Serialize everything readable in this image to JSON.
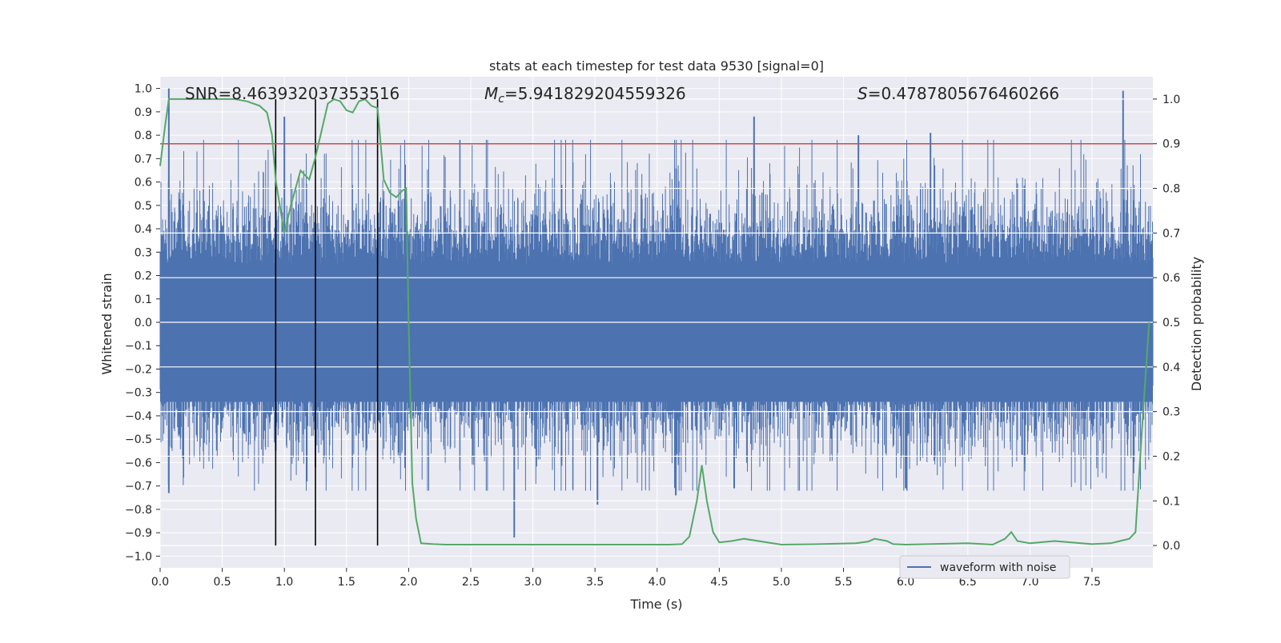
{
  "chart_data": {
    "type": "line",
    "title": "stats at each timestep for test data 9530 [signal=0]",
    "xlabel": "Time (s)",
    "ylabel": "Whitened strain",
    "y2label": "Detection probability",
    "xlim": [
      0.0,
      7.99
    ],
    "ylim": [
      -1.05,
      1.05
    ],
    "y2lim": [
      -0.05,
      1.05
    ],
    "xticks": [
      0.0,
      0.5,
      1.0,
      1.5,
      2.0,
      2.5,
      3.0,
      3.5,
      4.0,
      4.5,
      5.0,
      5.5,
      6.0,
      6.5,
      7.0,
      7.5
    ],
    "xtick_labels": [
      "0.0",
      "0.5",
      "1.0",
      "1.5",
      "2.0",
      "2.5",
      "3.0",
      "3.5",
      "4.0",
      "4.5",
      "5.0",
      "5.5",
      "6.0",
      "6.5",
      "7.0",
      "7.5"
    ],
    "yticks": [
      1.0,
      0.9,
      0.8,
      0.7,
      0.6,
      0.5,
      0.4,
      0.3,
      0.2,
      0.1,
      0.0,
      -0.1,
      -0.2,
      -0.3,
      -0.4,
      -0.5,
      -0.6,
      -0.7,
      -0.8,
      -0.9,
      -1.0
    ],
    "ytick_labels": [
      "1.0",
      "0.9",
      "0.8",
      "0.7",
      "0.6",
      "0.5",
      "0.4",
      "0.3",
      "0.2",
      "0.1",
      "0.0",
      "−0.1",
      "−0.2",
      "−0.3",
      "−0.4",
      "−0.5",
      "−0.6",
      "−0.7",
      "−0.8",
      "−0.9",
      "−1.0"
    ],
    "y2ticks": [
      1.0,
      0.9,
      0.8,
      0.7,
      0.6,
      0.5,
      0.4,
      0.3,
      0.2,
      0.1,
      0.0
    ],
    "y2tick_labels": [
      "1.0",
      "0.9",
      "0.8",
      "0.7",
      "0.6",
      "0.5",
      "0.4",
      "0.3",
      "0.2",
      "0.1",
      "0.0"
    ],
    "annotations": {
      "snr": "SNR=8.463932037353516",
      "mc_symbol": "M",
      "mc_sub": "c",
      "mc_value": "=5.941829204559326",
      "s_symbol": "S",
      "s_value": "=0.4787805676460266"
    },
    "legend": {
      "label": "waveform with noise",
      "location": "lower-right"
    },
    "threshold_probability": 0.9,
    "vertical_markers_s": [
      0.93,
      1.25,
      1.75
    ],
    "waveform": {
      "name": "waveform with noise",
      "color": "#4c72b0",
      "noise_spikes": [
        {
          "t": 0.07,
          "v": 1.0
        },
        {
          "t": 0.07,
          "v": -0.73
        },
        {
          "t": 0.93,
          "v": -0.55
        },
        {
          "t": 1.0,
          "v": 0.88
        },
        {
          "t": 1.25,
          "v": -0.62
        },
        {
          "t": 1.18,
          "v": -0.68
        },
        {
          "t": 2.85,
          "v": -0.92
        },
        {
          "t": 3.52,
          "v": -0.78
        },
        {
          "t": 4.78,
          "v": 0.88
        },
        {
          "t": 5.62,
          "v": 0.8
        },
        {
          "t": 6.2,
          "v": 0.81
        },
        {
          "t": 7.75,
          "v": 0.99
        },
        {
          "t": 4.15,
          "v": -0.74
        },
        {
          "t": 4.62,
          "v": -0.71
        },
        {
          "t": 6.0,
          "v": -0.71
        }
      ]
    },
    "detection_probability": {
      "name": "Detection probability",
      "color": "#55a868",
      "t": [
        0.0,
        0.04,
        0.07,
        0.1,
        0.2,
        0.3,
        0.4,
        0.5,
        0.6,
        0.7,
        0.8,
        0.86,
        0.9,
        0.93,
        0.97,
        1.0,
        1.05,
        1.1,
        1.13,
        1.2,
        1.25,
        1.3,
        1.35,
        1.4,
        1.45,
        1.5,
        1.55,
        1.6,
        1.65,
        1.7,
        1.75,
        1.8,
        1.85,
        1.9,
        1.95,
        1.98,
        2.0,
        2.03,
        2.06,
        2.1,
        2.2,
        2.3,
        2.5,
        3.0,
        3.5,
        4.0,
        4.1,
        4.2,
        4.26,
        4.32,
        4.36,
        4.4,
        4.45,
        4.5,
        4.6,
        4.7,
        5.0,
        5.3,
        5.6,
        5.7,
        5.75,
        5.85,
        5.9,
        6.0,
        6.5,
        6.7,
        6.8,
        6.85,
        6.9,
        7.0,
        7.2,
        7.5,
        7.65,
        7.8,
        7.85,
        7.9,
        7.96
      ],
      "p": [
        0.85,
        0.94,
        1.0,
        1.0,
        1.0,
        1.0,
        1.0,
        1.0,
        1.0,
        0.995,
        0.985,
        0.97,
        0.92,
        0.82,
        0.75,
        0.7,
        0.76,
        0.81,
        0.84,
        0.82,
        0.87,
        0.93,
        0.99,
        1.0,
        0.995,
        0.975,
        0.97,
        0.995,
        1.0,
        0.985,
        0.98,
        0.82,
        0.79,
        0.78,
        0.795,
        0.8,
        0.5,
        0.14,
        0.06,
        0.005,
        0.003,
        0.002,
        0.002,
        0.002,
        0.002,
        0.002,
        0.002,
        0.003,
        0.02,
        0.1,
        0.18,
        0.1,
        0.03,
        0.007,
        0.01,
        0.015,
        0.002,
        0.003,
        0.005,
        0.009,
        0.015,
        0.01,
        0.003,
        0.002,
        0.005,
        0.002,
        0.015,
        0.03,
        0.01,
        0.005,
        0.01,
        0.003,
        0.005,
        0.015,
        0.03,
        0.25,
        0.5
      ]
    }
  }
}
